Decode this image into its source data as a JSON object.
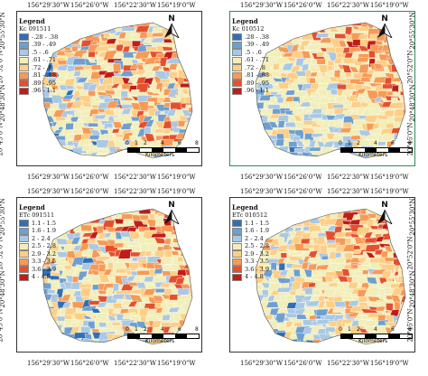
{
  "palette": {
    "ramp": [
      "#2f6fb8",
      "#6f9fd0",
      "#a9c8e4",
      "#f2eeb8",
      "#fdcf86",
      "#f79a56",
      "#e4502f",
      "#c01d17"
    ],
    "panel_bias": [
      0.45,
      0.72,
      0.52,
      0.62
    ]
  },
  "axes": {
    "top_labels": [
      "156°29'30\"W",
      "156°26'0\"W",
      "156°22'30\"W",
      "156°19'0\"W"
    ],
    "side_labels": [
      "20°55'30\"N",
      "20°52'0\"N",
      "20°48'30\"N",
      "20°45'0\"N"
    ]
  },
  "scale": {
    "ticks": [
      "0",
      "1",
      "2",
      "4",
      "6",
      "8"
    ],
    "unit": "Kilometers"
  },
  "north_label": "N",
  "panels": [
    {
      "legend_title": "Legend",
      "legend_sub": "Kc 091511",
      "legend_items": [
        "-.28 - .38",
        ".39 - .49",
        ".5 - .6",
        ".61 - .71",
        ".72 - .8",
        ".81 - .88",
        ".89 - .95",
        ".96 - 1.1"
      ]
    },
    {
      "legend_title": "Legend",
      "legend_sub": "Kc 010512",
      "legend_items": [
        ".28 - .38",
        ".39 - .49",
        ".5 - .6",
        ".61 - .71",
        ".72 - .8",
        ".81 - .88",
        ".89 - .95",
        ".96 - 1.1"
      ]
    },
    {
      "legend_title": "Legend",
      "legend_sub": "ETc 091511",
      "legend_items": [
        "1.1 - 1.5",
        "1.6 - 1.9",
        "2 - 2.4",
        "2.5 - 2.8",
        "2.9 - 3.2",
        "3.3 - 3.5",
        "3.6 - 3.9",
        "4 - 4.8"
      ]
    },
    {
      "legend_title": "Legend",
      "legend_sub": "ETc 010512",
      "legend_items": [
        "1.1 - 1.5",
        "1.6 - 1.9",
        "2 - 2.4",
        "2.5 - 2.8",
        "2.9 - 3.2",
        "3.3 - 3.5",
        "3.6 - 3.9",
        "4 - 4.8"
      ]
    }
  ]
}
